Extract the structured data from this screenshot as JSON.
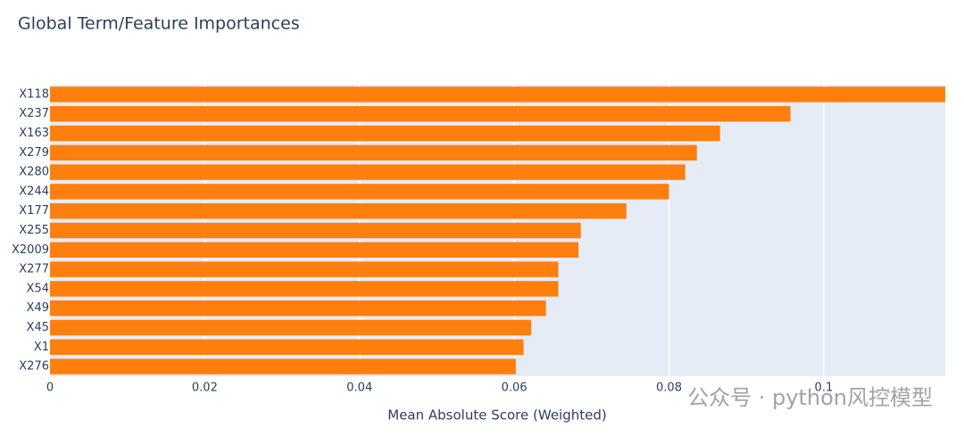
{
  "chart_data": {
    "type": "barh",
    "title": "Global Term/Feature Importances",
    "x_label": "Mean Absolute Score (Weighted)",
    "watermark": "公众号 · python风控模型",
    "categories": [
      "X118",
      "X237",
      "X163",
      "X279",
      "X280",
      "X244",
      "X177",
      "X255",
      "X2009",
      "X277",
      "X54",
      "X49",
      "X45",
      "X1",
      "X276"
    ],
    "values": [
      0.1157,
      0.0957,
      0.0866,
      0.0836,
      0.0821,
      0.08,
      0.0745,
      0.0686,
      0.0683,
      0.0657,
      0.0657,
      0.0641,
      0.0622,
      0.0612,
      0.0602
    ],
    "color": "#ff7f0e",
    "xlim": [
      0,
      0.1157
    ],
    "xticks": [
      0,
      0.02,
      0.04,
      0.06,
      0.08,
      0.1
    ],
    "grid": true
  }
}
